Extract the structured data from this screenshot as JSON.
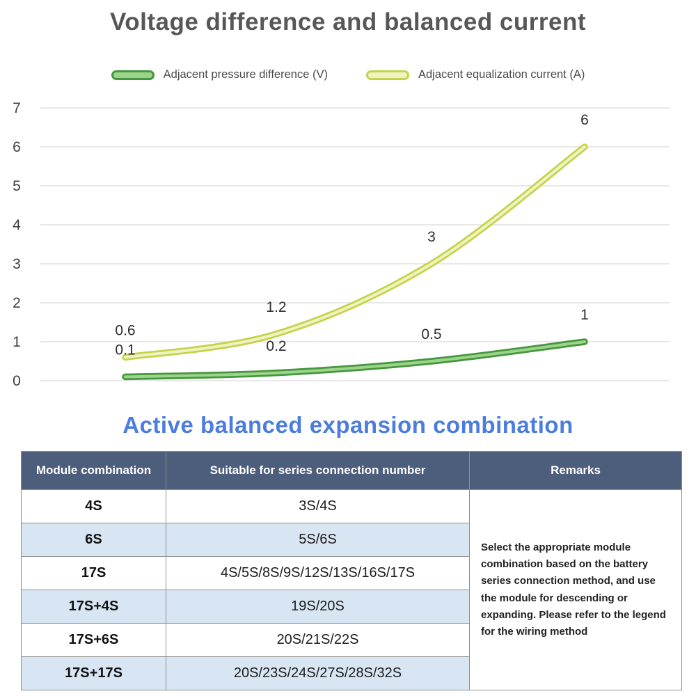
{
  "title": "Voltage difference and balanced current",
  "section_title": "Active balanced expansion combination",
  "legend": [
    {
      "label": "Adjacent pressure difference (V)",
      "edge_color": "#44973e",
      "fill_color": "#9ed48a"
    },
    {
      "label": "Adjacent equalization current (A)",
      "edge_color": "#c5d34a",
      "fill_color": "#eff3c3"
    }
  ],
  "chart_data": {
    "type": "line",
    "x": [
      1,
      2,
      3,
      4
    ],
    "series": [
      {
        "name": "Adjacent equalization current (A)",
        "values": [
          0.6,
          1.2,
          3,
          6
        ],
        "labels": [
          "0.6",
          "1.2",
          "3",
          "6"
        ],
        "edge_color": "#c5d34a",
        "fill_color": "#eff3c3"
      },
      {
        "name": "Adjacent pressure difference (V)",
        "values": [
          0.1,
          0.2,
          0.5,
          1
        ],
        "labels": [
          "0.1",
          "0.2",
          "0.5",
          "1"
        ],
        "edge_color": "#44973e",
        "fill_color": "#9ed48a"
      }
    ],
    "ylim": [
      0,
      7
    ],
    "yticks": [
      "0",
      "1",
      "2",
      "3",
      "4",
      "5",
      "6",
      "7"
    ],
    "grid": true,
    "legend_position": "top",
    "data_labels": true
  },
  "table": {
    "headers": [
      "Module combination",
      "Suitable for series connection number",
      "Remarks"
    ],
    "rows": [
      {
        "module": "4S",
        "series": "3S/4S"
      },
      {
        "module": "6S",
        "series": "5S/6S"
      },
      {
        "module": "17S",
        "series": "4S/5S/8S/9S/12S/13S/16S/17S"
      },
      {
        "module": "17S+4S",
        "series": "19S/20S"
      },
      {
        "module": "17S+6S",
        "series": "20S/21S/22S"
      },
      {
        "module": "17S+17S",
        "series": "20S/23S/24S/27S/28S/32S"
      }
    ],
    "remarks": "Select the appropriate module combination based on the battery series connection method, and use the module for descending or expanding. Please refer to the legend for the wiring method"
  }
}
